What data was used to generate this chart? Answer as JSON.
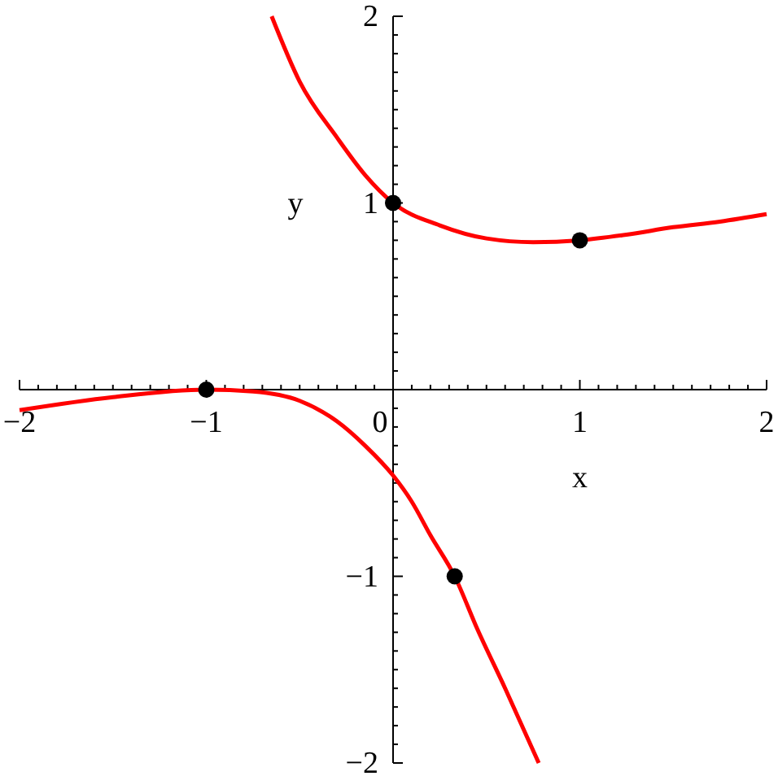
{
  "chart_data": {
    "type": "line",
    "xlabel": "x",
    "ylabel": "y",
    "xlim": [
      -2,
      2
    ],
    "ylim": [
      -2,
      2
    ],
    "xticks": [
      -2,
      -1,
      0,
      1,
      2,
      {
        "value": -1.9,
        "label": null
      },
      {
        "value": -1.8,
        "label": null
      },
      {
        "value": -1.7,
        "label": null
      },
      {
        "value": -1.6,
        "label": null
      },
      {
        "value": -1.5,
        "label": null
      },
      {
        "value": -1.4,
        "label": null
      },
      {
        "value": -1.3,
        "label": null
      },
      {
        "value": -1.2,
        "label": null
      },
      {
        "value": -1.1,
        "label": null
      },
      {
        "value": -0.9,
        "label": null
      },
      {
        "value": -0.8,
        "label": null
      },
      {
        "value": -0.7,
        "label": null
      },
      {
        "value": -0.6,
        "label": null
      },
      {
        "value": -0.5,
        "label": null
      },
      {
        "value": -0.4,
        "label": null
      },
      {
        "value": -0.3,
        "label": null
      },
      {
        "value": -0.2,
        "label": null
      },
      {
        "value": -0.1,
        "label": null
      },
      {
        "value": 0.1,
        "label": null
      },
      {
        "value": 0.2,
        "label": null
      },
      {
        "value": 0.3,
        "label": null
      },
      {
        "value": 0.4,
        "label": null
      },
      {
        "value": 0.5,
        "label": null
      },
      {
        "value": 0.6,
        "label": null
      },
      {
        "value": 0.7,
        "label": null
      },
      {
        "value": 0.8,
        "label": null
      },
      {
        "value": 0.9,
        "label": null
      },
      {
        "value": 1.1,
        "label": null
      },
      {
        "value": 1.2,
        "label": null
      },
      {
        "value": 1.3,
        "label": null
      },
      {
        "value": 1.4,
        "label": null
      },
      {
        "value": 1.5,
        "label": null
      },
      {
        "value": 1.6,
        "label": null
      },
      {
        "value": 1.7,
        "label": null
      },
      {
        "value": 1.8,
        "label": null
      },
      {
        "value": 1.9,
        "label": null
      }
    ],
    "yticks": [
      -2,
      -1,
      1,
      2,
      {
        "value": -1.9,
        "label": null
      },
      {
        "value": -1.8,
        "label": null
      },
      {
        "value": -1.7,
        "label": null
      },
      {
        "value": -1.6,
        "label": null
      },
      {
        "value": -1.5,
        "label": null
      },
      {
        "value": -1.4,
        "label": null
      },
      {
        "value": -1.3,
        "label": null
      },
      {
        "value": -1.2,
        "label": null
      },
      {
        "value": -1.1,
        "label": null
      },
      {
        "value": -0.9,
        "label": null
      },
      {
        "value": -0.8,
        "label": null
      },
      {
        "value": -0.7,
        "label": null
      },
      {
        "value": -0.6,
        "label": null
      },
      {
        "value": -0.5,
        "label": null
      },
      {
        "value": -0.4,
        "label": null
      },
      {
        "value": -0.3,
        "label": null
      },
      {
        "value": -0.2,
        "label": null
      },
      {
        "value": -0.1,
        "label": null
      },
      {
        "value": 0.1,
        "label": null
      },
      {
        "value": 0.2,
        "label": null
      },
      {
        "value": 0.3,
        "label": null
      },
      {
        "value": 0.4,
        "label": null
      },
      {
        "value": 0.5,
        "label": null
      },
      {
        "value": 0.6,
        "label": null
      },
      {
        "value": 0.7,
        "label": null
      },
      {
        "value": 0.8,
        "label": null
      },
      {
        "value": 0.9,
        "label": null
      },
      {
        "value": 1.1,
        "label": null
      },
      {
        "value": 1.2,
        "label": null
      },
      {
        "value": 1.3,
        "label": null
      },
      {
        "value": 1.4,
        "label": null
      },
      {
        "value": 1.5,
        "label": null
      },
      {
        "value": 1.6,
        "label": null
      },
      {
        "value": 1.7,
        "label": null
      },
      {
        "value": 1.8,
        "label": null
      },
      {
        "value": 1.9,
        "label": null
      }
    ],
    "series": [
      {
        "color": "#ff0000",
        "x": [
          -0.65,
          -0.5,
          -0.3,
          -0.15,
          0,
          0.25,
          0.5,
          0.75,
          1,
          1.25,
          1.5,
          1.75,
          2
        ],
        "values": [
          2,
          1.65,
          1.35,
          1.15,
          1,
          0.88,
          0.81,
          0.79,
          0.8,
          0.83,
          0.87,
          0.9,
          0.94
        ]
      },
      {
        "color": "#ff0000",
        "x": [
          -2,
          -1.5,
          -1,
          -0.75,
          -0.5,
          -0.3,
          -0.15,
          0,
          0.1,
          0.2,
          0.33,
          0.45,
          0.6,
          0.78
        ],
        "values": [
          -0.11,
          -0.04,
          0,
          -0.01,
          -0.06,
          -0.17,
          -0.3,
          -0.46,
          -0.6,
          -0.78,
          -1,
          -1.28,
          -1.6,
          -2
        ]
      },
      {
        "type": "scatter",
        "color": "#000000",
        "marker": "circle",
        "x": [
          -1,
          0,
          1,
          0.33
        ],
        "values": [
          0,
          1,
          0.8,
          -1
        ]
      }
    ]
  }
}
